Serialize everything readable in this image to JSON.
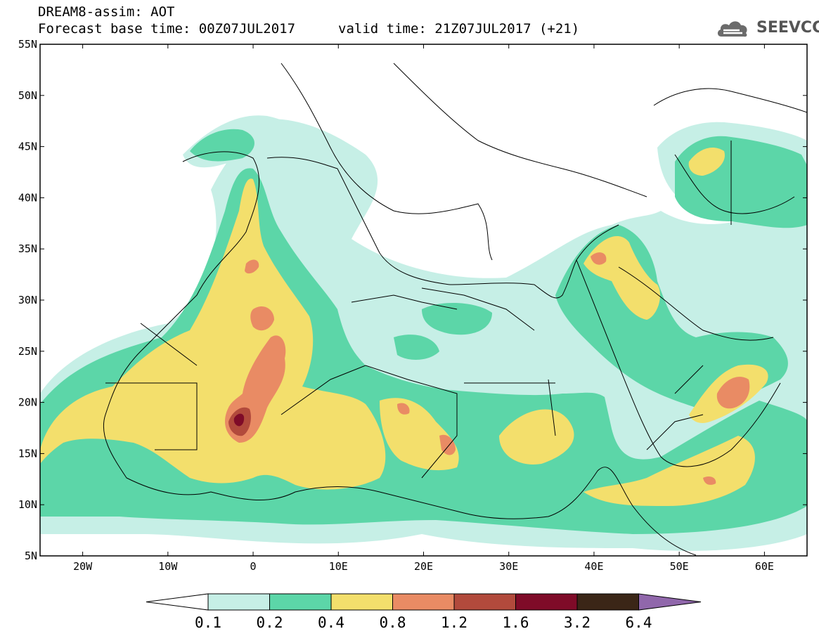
{
  "header": {
    "title": "DREAM8-assim: AOT",
    "base_time": "Forecast base time: 00Z07JUL2017",
    "valid_time": "valid time: 21Z07JUL2017 (+21)"
  },
  "logo": {
    "text": "SEEVCCC",
    "icon": "cloud-icon"
  },
  "map": {
    "lat_labels": [
      "55N",
      "50N",
      "45N",
      "40N",
      "35N",
      "30N",
      "25N",
      "20N",
      "15N",
      "10N",
      "5N"
    ],
    "lon_labels": [
      "20W",
      "10W",
      "0",
      "10E",
      "20E",
      "30E",
      "40E",
      "50E",
      "60E"
    ],
    "lat_range": [
      5,
      55
    ],
    "lon_range": [
      -25,
      65
    ]
  },
  "colorbar": {
    "labels": [
      "0.1",
      "0.2",
      "0.4",
      "0.8",
      "1.2",
      "1.6",
      "3.2",
      "6.4"
    ],
    "colors": [
      "#ffffff",
      "#c6efe6",
      "#5cd6a8",
      "#f3df6c",
      "#e98b64",
      "#b24a3c",
      "#7f0b28",
      "#3b2617",
      "#9067ab"
    ]
  },
  "palette": {
    "c1": "#c6efe6",
    "c2": "#5cd6a8",
    "c3": "#f3df6c",
    "c4": "#e98b64",
    "c5": "#b24a3c",
    "c6": "#7f0b28"
  }
}
